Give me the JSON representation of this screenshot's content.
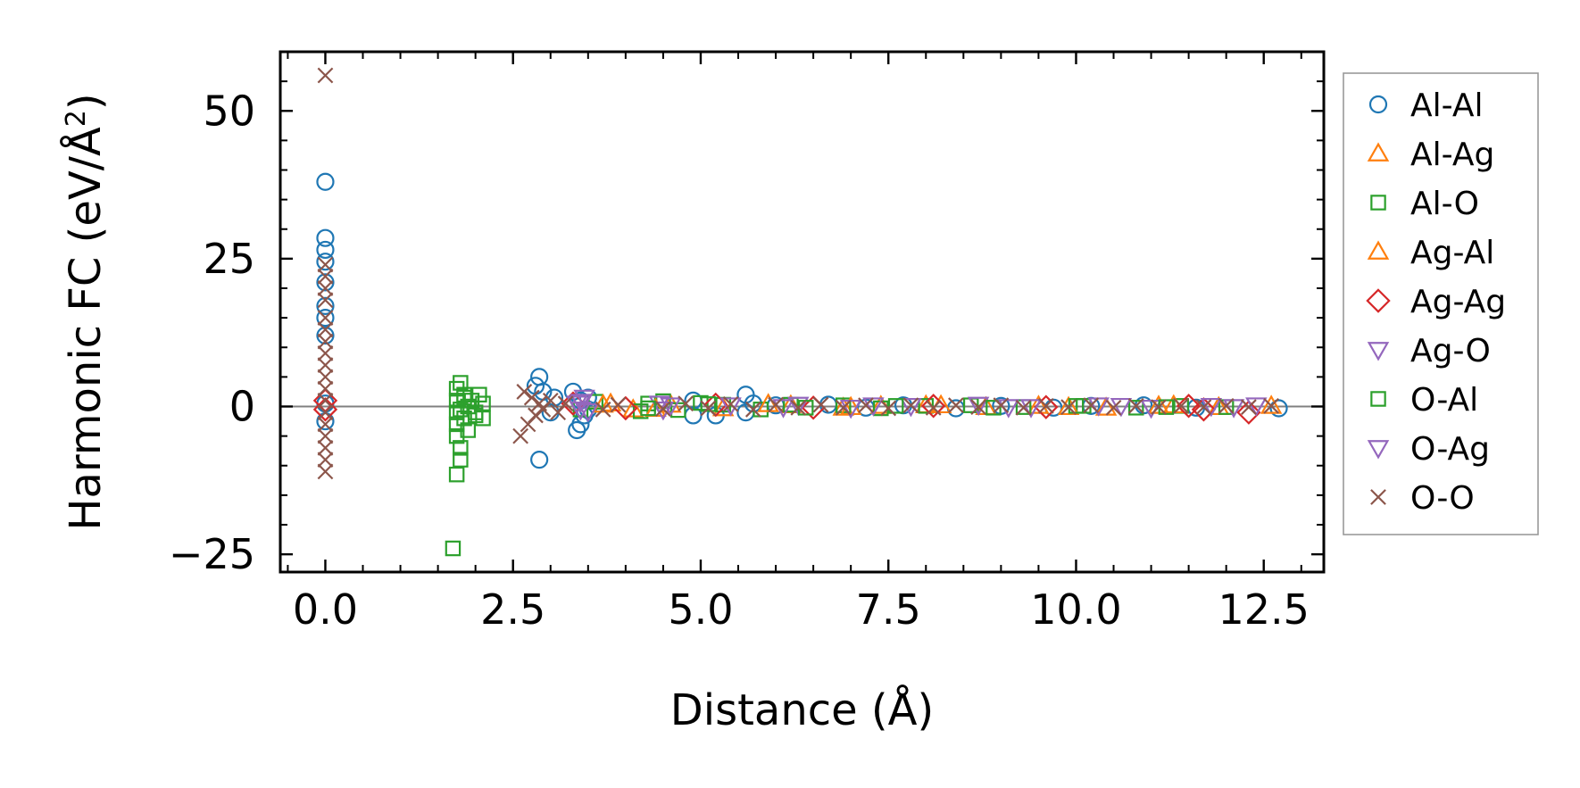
{
  "chart_data": {
    "type": "scatter",
    "title": "",
    "xlabel": "Distance (Å)",
    "ylabel_main": "Harmonic FC (eV/Å",
    "ylabel_sup": "2",
    "ylabel_close": ")",
    "xlim": [
      -0.6,
      13.3
    ],
    "ylim": [
      -28,
      60
    ],
    "xticks": [
      0.0,
      2.5,
      5.0,
      7.5,
      10.0,
      12.5
    ],
    "xtick_labels": [
      "0.0",
      "2.5",
      "5.0",
      "7.5",
      "10.0",
      "12.5"
    ],
    "yticks": [
      50,
      25,
      0,
      -25
    ],
    "ytick_labels": [
      "50",
      "25",
      "0",
      "−25"
    ],
    "zero_line": true,
    "grid": false,
    "legend_position": "outside-right",
    "series": [
      {
        "name": "Al-Al",
        "marker": "circle",
        "color": "#1f77b4",
        "points": [
          [
            0.0,
            38
          ],
          [
            0.0,
            28.5
          ],
          [
            0.0,
            26.5
          ],
          [
            0.0,
            24.5
          ],
          [
            0.0,
            21
          ],
          [
            0.0,
            17
          ],
          [
            0.0,
            15
          ],
          [
            0.0,
            12
          ],
          [
            0.0,
            0.5
          ],
          [
            0.0,
            -2.5
          ],
          [
            2.85,
            5
          ],
          [
            2.8,
            3.5
          ],
          [
            2.85,
            -9
          ],
          [
            2.9,
            2.5
          ],
          [
            3.0,
            -1
          ],
          [
            3.05,
            1.5
          ],
          [
            3.3,
            2.5
          ],
          [
            3.35,
            -4
          ],
          [
            3.4,
            -3
          ],
          [
            3.4,
            1
          ],
          [
            3.45,
            -1.5
          ],
          [
            3.5,
            1.5
          ],
          [
            3.5,
            -0.5
          ],
          [
            4.9,
            1
          ],
          [
            4.9,
            -1.5
          ],
          [
            5.2,
            -1.5
          ],
          [
            5.6,
            2
          ],
          [
            5.6,
            -1
          ],
          [
            5.7,
            0.5
          ],
          [
            6.0,
            0.2
          ],
          [
            6.7,
            0.3
          ],
          [
            7.2,
            -0.2
          ],
          [
            7.7,
            0.2
          ],
          [
            8.4,
            -0.3
          ],
          [
            9.0,
            0.1
          ],
          [
            9.7,
            -0.2
          ],
          [
            10.2,
            0.1
          ],
          [
            10.9,
            0.2
          ],
          [
            11.6,
            -0.2
          ],
          [
            12.7,
            -0.3
          ]
        ]
      },
      {
        "name": "Al-Ag",
        "marker": "triangle-up",
        "color": "#ff7f0e",
        "points": [
          [
            3.8,
            0.5
          ],
          [
            4.1,
            -0.5
          ],
          [
            4.6,
            0.3
          ],
          [
            5.3,
            -0.3
          ],
          [
            6.2,
            0.2
          ],
          [
            6.9,
            -0.2
          ],
          [
            7.4,
            0.1
          ],
          [
            8.0,
            0.2
          ],
          [
            8.8,
            -0.1
          ],
          [
            9.5,
            0.1
          ],
          [
            10.4,
            -0.2
          ],
          [
            11.1,
            0.1
          ],
          [
            11.9,
            -0.1
          ],
          [
            12.6,
            0.1
          ]
        ]
      },
      {
        "name": "Al-O",
        "marker": "square",
        "color": "#2ca02c",
        "points": [
          [
            1.7,
            -24
          ],
          [
            1.75,
            -11.5
          ],
          [
            1.8,
            -9
          ],
          [
            1.8,
            -7
          ],
          [
            1.75,
            -5
          ],
          [
            1.75,
            -3
          ],
          [
            1.75,
            -1
          ],
          [
            1.75,
            1
          ],
          [
            1.75,
            3
          ],
          [
            1.8,
            4
          ],
          [
            1.85,
            2
          ],
          [
            1.85,
            -2
          ],
          [
            1.9,
            -4
          ],
          [
            1.9,
            0
          ],
          [
            1.95,
            1
          ],
          [
            2.0,
            -1
          ],
          [
            2.05,
            2
          ],
          [
            2.1,
            -2
          ],
          [
            2.1,
            0.5
          ],
          [
            3.4,
            -0.5
          ],
          [
            3.6,
            0.8
          ],
          [
            4.2,
            -0.8
          ],
          [
            4.3,
            0.5
          ],
          [
            4.5,
            0.9
          ],
          [
            4.7,
            -0.6
          ],
          [
            5.0,
            0.6
          ],
          [
            5.3,
            0.3
          ],
          [
            5.8,
            -0.5
          ],
          [
            6.2,
            0.3
          ],
          [
            6.9,
            0.2
          ],
          [
            7.4,
            -0.3
          ],
          [
            8.0,
            0.1
          ],
          [
            8.6,
            0.2
          ],
          [
            9.3,
            -0.1
          ],
          [
            10.1,
            0.1
          ],
          [
            10.8,
            -0.2
          ],
          [
            11.4,
            0.1
          ],
          [
            12.0,
            -0.1
          ]
        ]
      },
      {
        "name": "Ag-Al",
        "marker": "triangle-up",
        "color": "#ff7f0e",
        "points": [
          [
            3.7,
            0.3
          ],
          [
            4.4,
            -0.4
          ],
          [
            5.9,
            0.4
          ],
          [
            7.0,
            -0.1
          ],
          [
            8.2,
            0.2
          ],
          [
            9.9,
            -0.1
          ],
          [
            11.3,
            0.2
          ]
        ]
      },
      {
        "name": "Ag-Ag",
        "marker": "diamond",
        "color": "#d62728",
        "points": [
          [
            0.0,
            1
          ],
          [
            0.0,
            -0.5
          ],
          [
            3.3,
            0.5
          ],
          [
            4.0,
            -0.3
          ],
          [
            5.2,
            0.3
          ],
          [
            6.5,
            -0.2
          ],
          [
            8.1,
            0.1
          ],
          [
            9.6,
            -0.1
          ],
          [
            11.5,
            0.1
          ],
          [
            11.7,
            -0.5
          ],
          [
            12.3,
            -1
          ]
        ]
      },
      {
        "name": "Ag-O",
        "marker": "triangle-down",
        "color": "#9467bd",
        "points": [
          [
            3.35,
            0.5
          ],
          [
            3.4,
            -0.5
          ],
          [
            3.45,
            1.5
          ],
          [
            4.45,
            0.5
          ],
          [
            4.5,
            -0.5
          ],
          [
            5.4,
            0.2
          ],
          [
            6.3,
            0.3
          ],
          [
            7.0,
            -0.2
          ],
          [
            7.8,
            0.1
          ],
          [
            8.7,
            0.3
          ],
          [
            9.4,
            -0.1
          ],
          [
            10.3,
            0.2
          ],
          [
            11.0,
            -0.2
          ],
          [
            11.8,
            0.1
          ],
          [
            12.4,
            0.2
          ]
        ]
      },
      {
        "name": "O-Al",
        "marker": "square",
        "color": "#2ca02c",
        "points": [
          [
            1.8,
            -0.5
          ],
          [
            1.85,
            1.5
          ],
          [
            2.0,
            -1.5
          ],
          [
            4.3,
            -0.3
          ],
          [
            5.1,
            0.4
          ],
          [
            6.4,
            -0.2
          ],
          [
            7.6,
            0.1
          ],
          [
            8.9,
            -0.2
          ],
          [
            10.0,
            0.1
          ],
          [
            11.2,
            -0.1
          ]
        ]
      },
      {
        "name": "O-Ag",
        "marker": "triangle-down",
        "color": "#9467bd",
        "points": [
          [
            3.4,
            0.8
          ],
          [
            3.5,
            -0.8
          ],
          [
            4.6,
            0.2
          ],
          [
            6.1,
            -0.1
          ],
          [
            7.3,
            0.2
          ],
          [
            9.1,
            -0.1
          ],
          [
            10.6,
            0.1
          ],
          [
            12.1,
            -0.1
          ]
        ]
      },
      {
        "name": "O-O",
        "marker": "x",
        "color": "#8c564b",
        "points": [
          [
            0.0,
            56
          ],
          [
            0.0,
            24
          ],
          [
            0.0,
            22
          ],
          [
            0.0,
            20
          ],
          [
            0.0,
            18
          ],
          [
            0.0,
            15
          ],
          [
            0.0,
            13
          ],
          [
            0.0,
            11
          ],
          [
            0.0,
            9
          ],
          [
            0.0,
            7
          ],
          [
            0.0,
            5
          ],
          [
            0.0,
            3
          ],
          [
            0.0,
            1
          ],
          [
            0.0,
            -1
          ],
          [
            0.0,
            -3
          ],
          [
            0.0,
            -5
          ],
          [
            0.0,
            -7
          ],
          [
            0.0,
            -9
          ],
          [
            0.0,
            -11
          ],
          [
            2.6,
            -5
          ],
          [
            2.65,
            2.5
          ],
          [
            2.7,
            -3
          ],
          [
            2.75,
            1.5
          ],
          [
            2.8,
            -1.5
          ],
          [
            2.85,
            0.5
          ],
          [
            2.9,
            -0.5
          ],
          [
            3.0,
            1
          ],
          [
            3.1,
            -1
          ],
          [
            3.2,
            0.5
          ],
          [
            3.7,
            -0.5
          ],
          [
            3.9,
            0.3
          ],
          [
            4.5,
            -0.4
          ],
          [
            4.8,
            0.5
          ],
          [
            5.1,
            -0.3
          ],
          [
            5.4,
            0.4
          ],
          [
            5.7,
            -0.5
          ],
          [
            6.0,
            0.3
          ],
          [
            6.3,
            -0.2
          ],
          [
            6.6,
            0.3
          ],
          [
            6.9,
            -0.2
          ],
          [
            7.2,
            0.2
          ],
          [
            7.5,
            -0.3
          ],
          [
            7.8,
            0.2
          ],
          [
            8.1,
            -0.2
          ],
          [
            8.4,
            0.2
          ],
          [
            8.7,
            -0.1
          ],
          [
            9.0,
            0.2
          ],
          [
            9.3,
            -0.2
          ],
          [
            9.6,
            0.1
          ],
          [
            9.9,
            -0.1
          ],
          [
            10.2,
            0.2
          ],
          [
            10.5,
            -0.2
          ],
          [
            10.8,
            0.1
          ],
          [
            11.1,
            -0.1
          ],
          [
            11.4,
            0.1
          ],
          [
            11.7,
            -0.1
          ],
          [
            12.0,
            0.1
          ],
          [
            12.3,
            -0.1
          ],
          [
            12.6,
            0.1
          ]
        ]
      }
    ]
  }
}
